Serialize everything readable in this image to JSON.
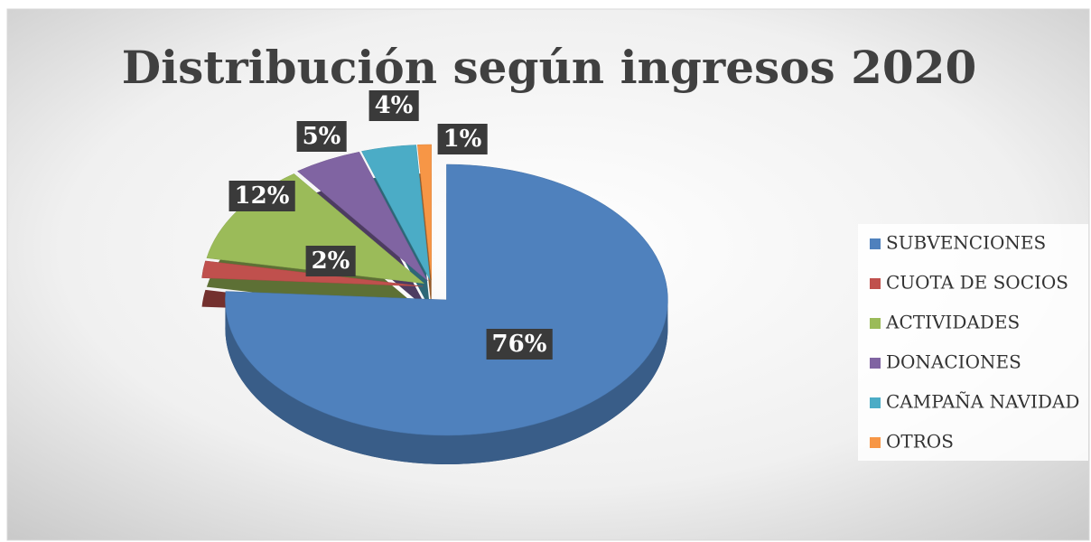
{
  "chart_data": {
    "type": "pie",
    "title": "Distribución según ingresos 2020",
    "categories": [
      "SUBVENCIONES",
      "CUOTA DE SOCIOS",
      "ACTIVIDADES",
      "DONACIONES",
      "CAMPAÑA NAVIDAD",
      "OTROS"
    ],
    "values": [
      76,
      2,
      12,
      5,
      4,
      1
    ],
    "value_labels": [
      "76%",
      "2%",
      "12%",
      "5%",
      "4%",
      "1%"
    ],
    "colors": [
      "#4f81bd",
      "#c0504d",
      "#9bbb59",
      "#8064a2",
      "#4bacc6",
      "#f79646"
    ],
    "legend": "right"
  }
}
